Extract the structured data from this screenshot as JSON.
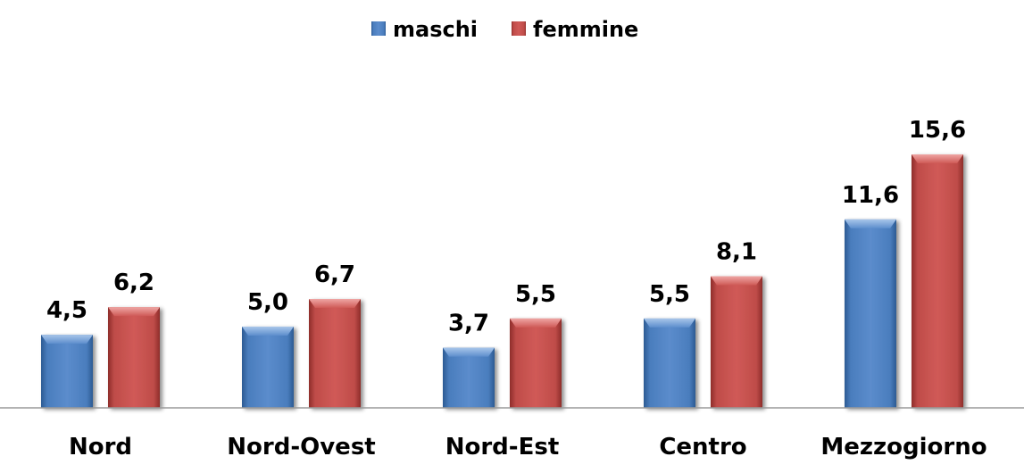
{
  "chart_data": {
    "type": "bar",
    "title": "",
    "xlabel": "",
    "ylabel": "",
    "categories": [
      "Nord",
      "Nord-Ovest",
      "Nord-Est",
      "Centro",
      "Mezzogiorno"
    ],
    "series": [
      {
        "name": "maschi",
        "values": [
          4.5,
          5.0,
          3.7,
          5.5,
          11.6
        ],
        "labels": [
          "4,5",
          "5,0",
          "3,7",
          "5,5",
          "11,6"
        ],
        "color": "#4F81BD"
      },
      {
        "name": "femmine",
        "values": [
          6.2,
          6.7,
          5.5,
          8.1,
          15.6
        ],
        "labels": [
          "6,2",
          "6,7",
          "5,5",
          "8,1",
          "15,6"
        ],
        "color": "#C0504D"
      }
    ],
    "ylim": [
      0,
      16
    ],
    "grid": false,
    "legend_position": "top"
  }
}
